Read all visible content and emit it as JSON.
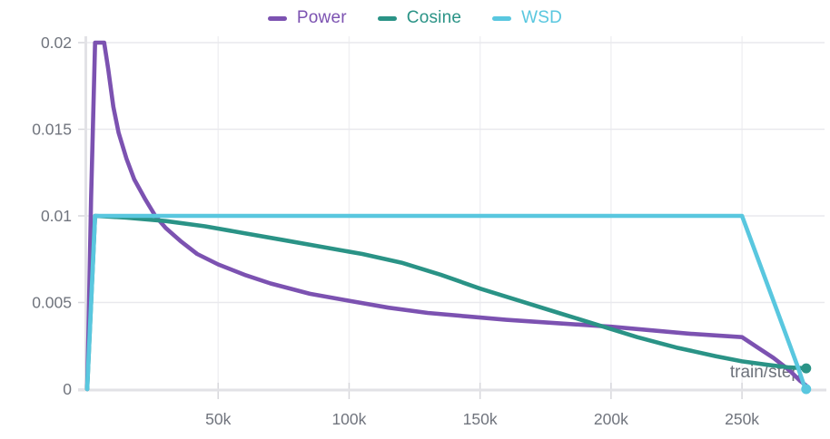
{
  "legend": {
    "items": [
      {
        "label": "Power",
        "color": "#7c52b1"
      },
      {
        "label": "Cosine",
        "color": "#2a9386"
      },
      {
        "label": "WSD",
        "color": "#59c7df"
      }
    ]
  },
  "axis": {
    "x_label": "train/step",
    "x_ticks": [
      {
        "value": 50,
        "label": "50k"
      },
      {
        "value": 100,
        "label": "100k"
      },
      {
        "value": 150,
        "label": "150k"
      },
      {
        "value": 200,
        "label": "200k"
      },
      {
        "value": 250,
        "label": "250k"
      }
    ],
    "y_ticks": [
      {
        "value": 0,
        "label": "0"
      },
      {
        "value": 0.005,
        "label": "0.005"
      },
      {
        "value": 0.01,
        "label": "0.01"
      },
      {
        "value": 0.015,
        "label": "0.015"
      },
      {
        "value": 0.02,
        "label": "0.02"
      }
    ]
  },
  "colors": {
    "grid": "#e9e9ed",
    "grid_vertical": "#f0f0f3",
    "axis_line": "#e2e2e6",
    "tick_mark": "#d7d7dc",
    "tick_text": "#70747d",
    "axis_label_text": "#6d727b"
  },
  "chart_data": {
    "type": "line",
    "title": "",
    "xlabel": "train/step",
    "ylabel": "",
    "x_unit": "thousand steps",
    "xlim": [
      0,
      274.5
    ],
    "ylim": [
      0,
      0.0205
    ],
    "grid": true,
    "legend_position": "top-center",
    "series": [
      {
        "name": "Power",
        "color": "#7c52b1",
        "end_dot": false,
        "points": [
          [
            0,
            0
          ],
          [
            0.6,
            0.004
          ],
          [
            1.5,
            0.011
          ],
          [
            3,
            0.02
          ],
          [
            6.5,
            0.02
          ],
          [
            8,
            0.0185
          ],
          [
            10,
            0.0163
          ],
          [
            12,
            0.0148
          ],
          [
            15,
            0.0133
          ],
          [
            18,
            0.0121
          ],
          [
            22,
            0.011
          ],
          [
            26,
            0.01
          ],
          [
            30,
            0.0093
          ],
          [
            36,
            0.0085
          ],
          [
            42,
            0.0078
          ],
          [
            50,
            0.0072
          ],
          [
            60,
            0.0066
          ],
          [
            70,
            0.0061
          ],
          [
            85,
            0.0055
          ],
          [
            100,
            0.0051
          ],
          [
            115,
            0.0047
          ],
          [
            130,
            0.0044
          ],
          [
            145,
            0.0042
          ],
          [
            160,
            0.004
          ],
          [
            180,
            0.0038
          ],
          [
            200,
            0.0036
          ],
          [
            215,
            0.0034
          ],
          [
            230,
            0.0032
          ],
          [
            240,
            0.0031
          ],
          [
            250,
            0.003
          ],
          [
            256,
            0.0024
          ],
          [
            262,
            0.0018
          ],
          [
            268,
            0.0011
          ],
          [
            272,
            0.0005
          ],
          [
            274.5,
            0.0002
          ]
        ]
      },
      {
        "name": "Cosine",
        "color": "#2a9386",
        "end_dot": true,
        "points": [
          [
            0,
            0
          ],
          [
            3,
            0.01
          ],
          [
            15,
            0.0099
          ],
          [
            30,
            0.0097
          ],
          [
            45,
            0.0094
          ],
          [
            60,
            0.009
          ],
          [
            75,
            0.0086
          ],
          [
            90,
            0.0082
          ],
          [
            105,
            0.0078
          ],
          [
            120,
            0.0073
          ],
          [
            135,
            0.0066
          ],
          [
            150,
            0.0058
          ],
          [
            165,
            0.0051
          ],
          [
            180,
            0.0044
          ],
          [
            195,
            0.0037
          ],
          [
            210,
            0.003
          ],
          [
            225,
            0.0024
          ],
          [
            240,
            0.0019
          ],
          [
            250,
            0.0016
          ],
          [
            260,
            0.0014
          ],
          [
            268,
            0.00125
          ],
          [
            274.5,
            0.0012
          ]
        ]
      },
      {
        "name": "WSD",
        "color": "#59c7df",
        "end_dot": true,
        "points": [
          [
            0,
            0
          ],
          [
            3,
            0.01
          ],
          [
            250,
            0.01
          ],
          [
            256,
            0.00755
          ],
          [
            262,
            0.0051
          ],
          [
            268,
            0.00265
          ],
          [
            271.5,
            0.0012
          ],
          [
            273.5,
            0.0003
          ],
          [
            274.5,
            0
          ]
        ]
      }
    ]
  }
}
